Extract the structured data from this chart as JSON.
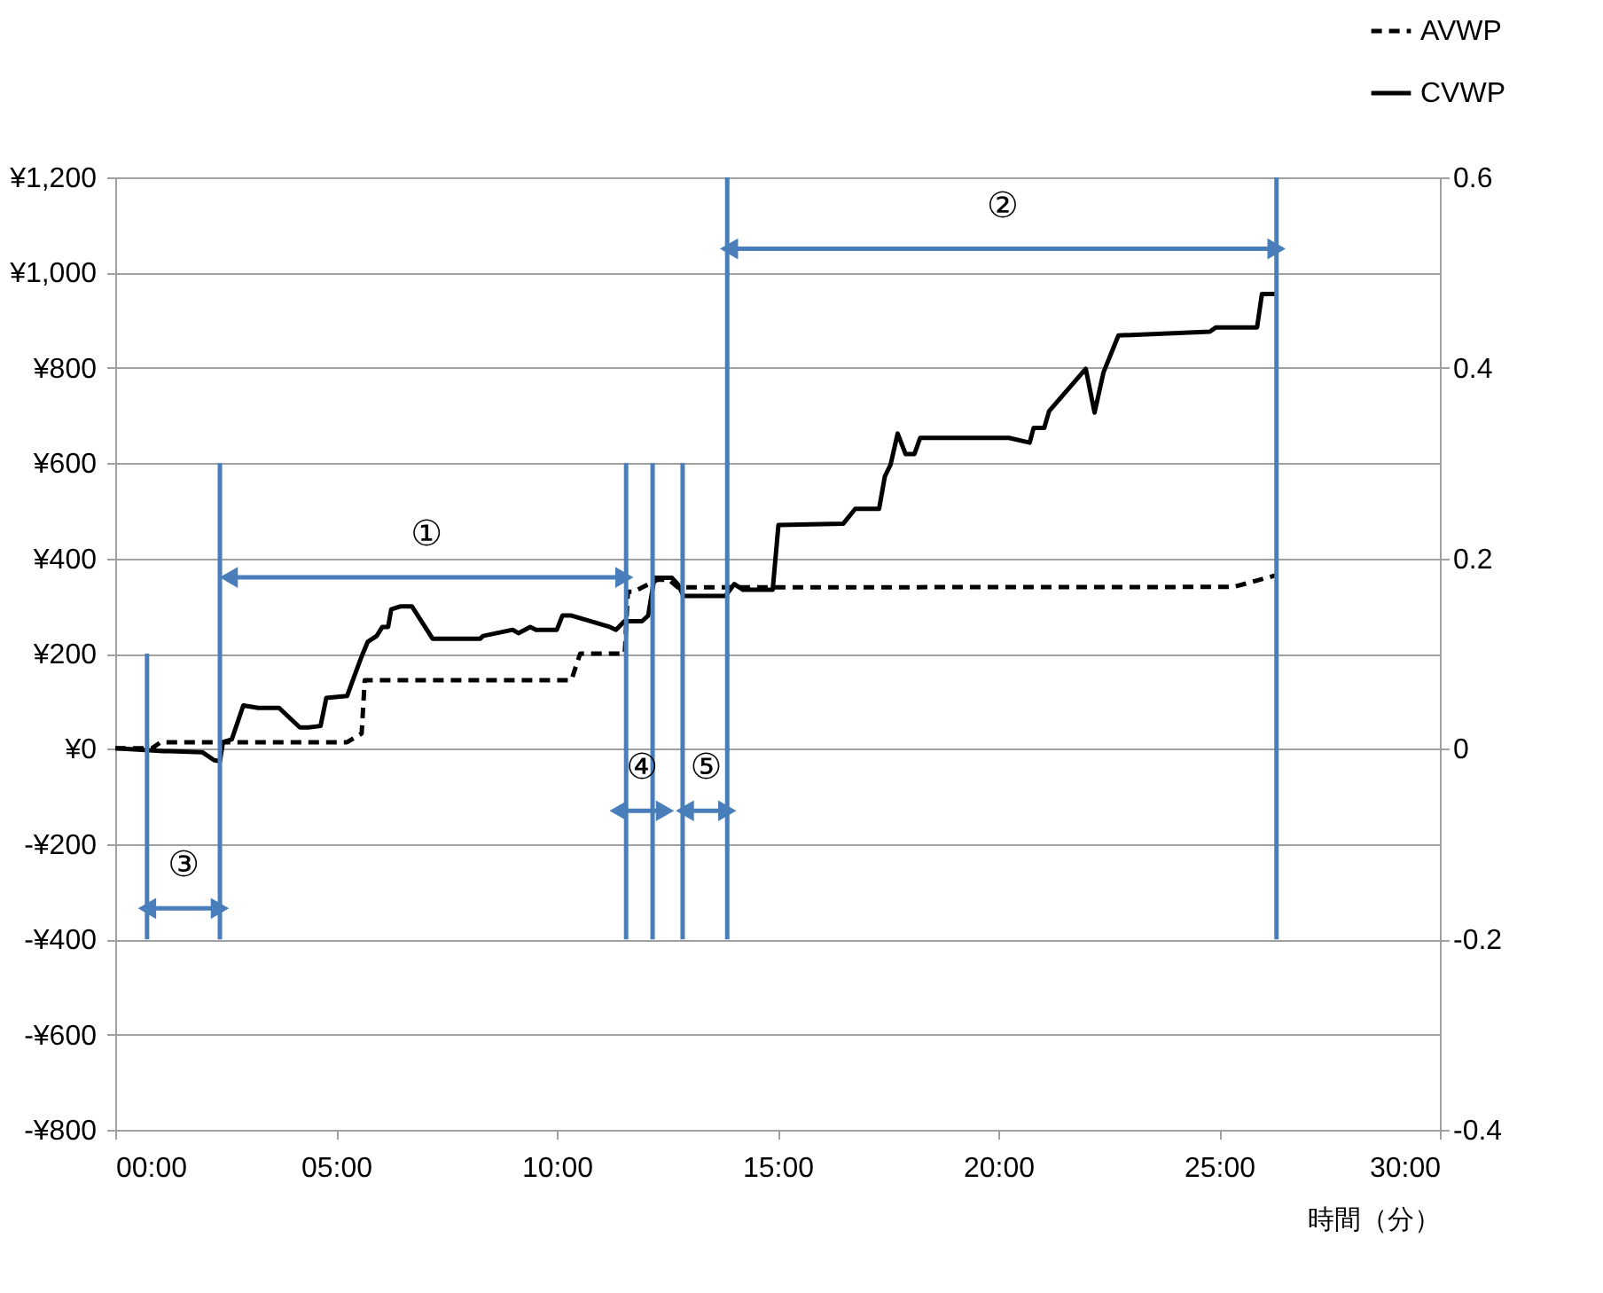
{
  "chart_data": {
    "type": "line",
    "xlabel": "時間（分）",
    "xlim": [
      0,
      30
    ],
    "xticks": [
      {
        "value": 0,
        "label": "00:00"
      },
      {
        "value": 5,
        "label": "05:00"
      },
      {
        "value": 10,
        "label": "10:00"
      },
      {
        "value": 15,
        "label": "15:00"
      },
      {
        "value": 20,
        "label": "20:00"
      },
      {
        "value": 25,
        "label": "25:00"
      },
      {
        "value": 30,
        "label": "30:00"
      }
    ],
    "ylim": [
      -800,
      1200
    ],
    "yticks": [
      {
        "value": -800,
        "label": "-¥800"
      },
      {
        "value": -600,
        "label": "-¥600"
      },
      {
        "value": -400,
        "label": "-¥400"
      },
      {
        "value": -200,
        "label": "-¥200"
      },
      {
        "value": 0,
        "label": "¥0"
      },
      {
        "value": 200,
        "label": "¥200"
      },
      {
        "value": 400,
        "label": "¥400"
      },
      {
        "value": 600,
        "label": "¥600"
      },
      {
        "value": 800,
        "label": "¥800"
      },
      {
        "value": 1000,
        "label": "¥1,000"
      },
      {
        "value": 1200,
        "label": "¥1,200"
      }
    ],
    "y2lim": [
      -0.4,
      0.6
    ],
    "y2ticks": [
      -0.4,
      -0.2,
      0,
      0.2,
      0.4,
      0.6
    ],
    "grid": "y",
    "legend": "top right",
    "series": [
      {
        "name": "AVWP",
        "color": "#000000",
        "line_style": "dashed",
        "x": [
          0,
          0.83,
          1.03,
          5.25,
          5.58,
          5.65,
          10.33,
          10.53,
          11.54,
          11.61,
          11.74,
          12.28,
          12.54,
          12.74,
          25.33,
          26.27
        ],
        "values": [
          1,
          1,
          14,
          14,
          32,
          144,
          144,
          200,
          200,
          330,
          330,
          355,
          355,
          339,
          340,
          364
        ]
      },
      {
        "name": "CVWP",
        "color": "#000000",
        "line_style": "solid",
        "x": [
          0,
          1.1,
          1.23,
          1.97,
          2.24,
          2.37,
          2.44,
          2.64,
          2.9,
          3.24,
          3.71,
          4.18,
          4.38,
          4.65,
          4.78,
          5.25,
          5.38,
          5.58,
          5.72,
          5.92,
          6.05,
          6.18,
          6.25,
          6.45,
          6.72,
          7.19,
          8.26,
          8.33,
          9.0,
          9.13,
          9.4,
          9.53,
          10.0,
          10.13,
          10.33,
          11.2,
          11.34,
          11.53,
          11.93,
          12.07,
          12.21,
          12.61,
          12.74,
          12.87,
          13.82,
          14.02,
          14.22,
          14.89,
          15.02,
          16.49,
          16.76,
          17.3,
          17.43,
          17.56,
          17.72,
          17.9,
          18.1,
          18.23,
          20.24,
          20.71,
          20.8,
          21.04,
          21.15,
          21.98,
          22.18,
          22.38,
          22.72,
          24.79,
          24.93,
          25.86,
          25.97,
          26.27
        ],
        "values": [
          1,
          -5,
          -5,
          -7,
          -24,
          -26,
          14,
          20,
          91,
          86,
          86,
          45,
          45,
          48,
          107,
          111,
          144,
          194,
          225,
          237,
          256,
          256,
          293,
          299,
          299,
          231,
          231,
          237,
          250,
          243,
          256,
          250,
          250,
          280,
          280,
          256,
          250,
          268,
          268,
          280,
          359,
          359,
          346,
          321,
          321,
          346,
          334,
          334,
          470,
          473,
          504,
          504,
          572,
          597,
          662,
          619,
          619,
          653,
          653,
          643,
          674,
          674,
          709,
          798,
          706,
          790,
          868,
          876,
          885,
          885,
          955,
          955
        ]
      },
      {
        "color": "#4a7ebb",
        "line_style": "solid",
        "x": [
          0.72,
          0.72,
          null,
          2.37,
          2.37,
          null,
          11.57,
          11.57,
          null,
          12.17,
          12.17,
          null,
          12.85,
          12.85,
          null,
          13.86,
          13.86,
          null,
          26.3,
          26.3,
          null,
          0.72,
          2.37,
          null,
          2.57,
          11.53,
          null,
          13.9,
          26.3,
          null,
          11.4,
          12.45,
          null,
          12.9,
          13.86
        ],
        "values": [
          -400,
          200,
          null,
          -400,
          600,
          null,
          -400,
          600,
          null,
          -400,
          600,
          null,
          -400,
          600,
          null,
          -400,
          1200,
          null,
          -400,
          1200,
          null,
          -335,
          -335,
          null,
          360,
          360,
          null,
          1050,
          1050,
          null,
          -130,
          -130,
          null,
          -130,
          -130
        ]
      }
    ],
    "annotations": [
      {
        "text": "①",
        "x": 7.05,
        "y": 360
      },
      {
        "text": "②",
        "x": 20.1,
        "y": 1050
      },
      {
        "text": "③",
        "x": 1.55,
        "y": -335
      },
      {
        "text": "④",
        "x": 11.93,
        "y": -130
      },
      {
        "text": "⑤",
        "x": 13.38,
        "y": -130
      }
    ]
  }
}
